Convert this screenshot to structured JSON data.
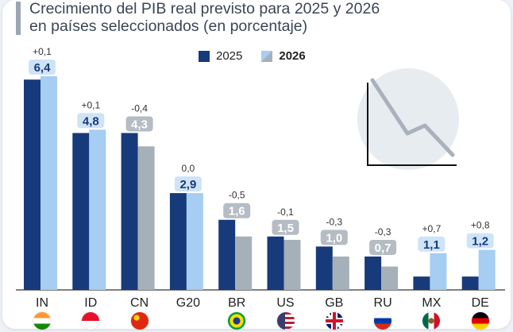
{
  "title": {
    "line1": "Crecimiento del PIB real previsto para 2025 y 2026",
    "line2": "en países seleccionados (en porcentaje)"
  },
  "colors": {
    "y2025": "#173a7a",
    "y2026_up": "#a6cdf2",
    "y2026_down": "#a6b0b9",
    "label_up_bg": "#cfe3f7",
    "label_down_bg": "#b5bcc3",
    "decor_circle": "#e7ecf1",
    "decor_line": "#a9b2bb"
  },
  "legend": [
    {
      "label": "2025",
      "color": "#173a7a",
      "bold": false
    },
    {
      "label": "2026",
      "color": "#a6cdf2",
      "color2": "#a6b0b9",
      "bold": true
    }
  ],
  "chart_data": {
    "type": "bar",
    "title": "Crecimiento del PIB real previsto para 2025 y 2026 en países seleccionados (en porcentaje)",
    "categories": [
      "IN",
      "ID",
      "CN",
      "G20",
      "BR",
      "US",
      "GB",
      "RU",
      "MX",
      "DE"
    ],
    "series": [
      {
        "name": "2025",
        "values": [
          6.3,
          4.7,
          4.7,
          2.9,
          2.1,
          1.6,
          1.3,
          1.0,
          0.4,
          0.4
        ]
      },
      {
        "name": "2026",
        "values": [
          6.4,
          4.8,
          4.3,
          2.9,
          1.6,
          1.5,
          1.0,
          0.7,
          1.1,
          1.2
        ]
      }
    ],
    "value_labels": [
      "6,4",
      "4,8",
      "4,3",
      "2,9",
      "1,6",
      "1,5",
      "1,0",
      "0,7",
      "1,1",
      "1,2"
    ],
    "change_labels": [
      "+0,1",
      "+0,1",
      "-0,4",
      "0,0",
      "-0,5",
      "-0,1",
      "-0,3",
      "-0,3",
      "+0,7",
      "+0,8"
    ],
    "direction_2026": [
      "up",
      "up",
      "down",
      "up",
      "down",
      "down",
      "down",
      "down",
      "up",
      "up"
    ],
    "flags": [
      "india",
      "indonesia",
      "china",
      "",
      "brazil",
      "usa",
      "uk",
      "russia",
      "mexico",
      "germany"
    ],
    "ylim": [
      0,
      6.9
    ],
    "grid": false,
    "legend_position": "top"
  }
}
